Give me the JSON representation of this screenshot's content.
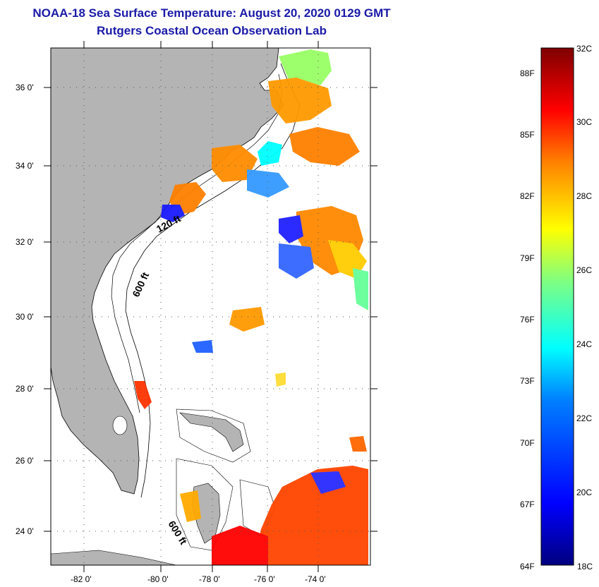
{
  "header": {
    "title": "NOAA-18 Sea Surface Temperature:  August 20, 2020 0129 GMT",
    "subtitle": "Rutgers Coastal Ocean Observation Lab"
  },
  "map": {
    "lat_ticks": [
      "36 0'",
      "34 0'",
      "32 0'",
      "30 0'",
      "28 0'",
      "26 0'",
      "24 0'"
    ],
    "lon_ticks": [
      "-82 0'",
      "-80 0'",
      "-78 0'",
      "-76 0'",
      "-74 0'"
    ],
    "isobath_labels": [
      "120 ft",
      "600 ft",
      "600 ft"
    ],
    "land_color": "#b4b4b4",
    "ocean_color": "#ffffff"
  },
  "colorbar": {
    "celsius": [
      "32C",
      "30C",
      "28C",
      "26C",
      "24C",
      "22C",
      "20C",
      "18C"
    ],
    "fahrenheit": [
      "88F",
      "85F",
      "82F",
      "79F",
      "76F",
      "73F",
      "70F",
      "67F",
      "64F"
    ],
    "colors": [
      "#7f0000",
      "#ff0000",
      "#ff8000",
      "#ffff00",
      "#80ff80",
      "#00ffff",
      "#0080ff",
      "#0000ff",
      "#00007f"
    ]
  }
}
